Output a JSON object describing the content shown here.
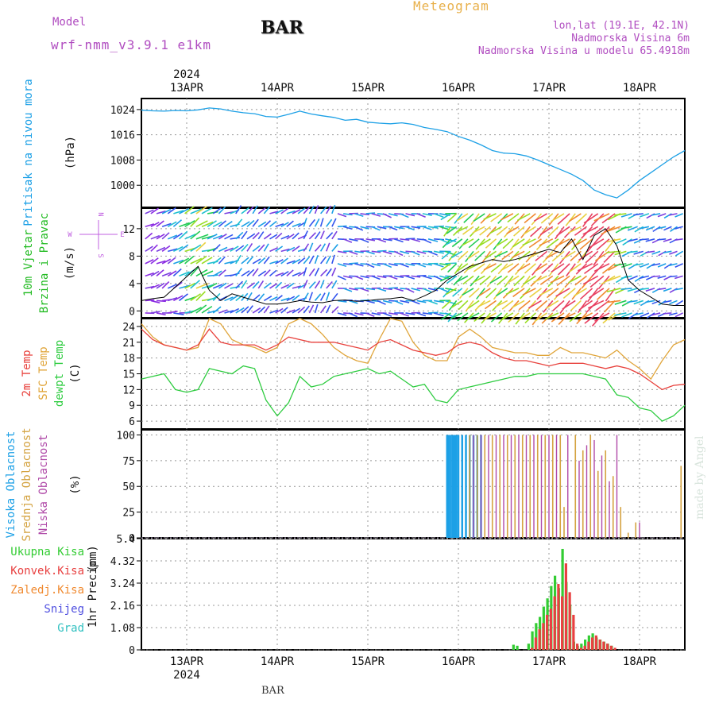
{
  "header": {
    "model_label": "Model",
    "model_name": "wrf-nmm_v3.9.1 e1km",
    "station": "BAR",
    "product": "Meteogram",
    "lonlat": "lon,lat (19.1E, 42.1N)",
    "elevation": "Nadmorska Visina 6m",
    "model_elevation": "Nadmorska Visina u modelu 65.4918m",
    "credit": "made by Angel",
    "footer_station": "BAR"
  },
  "time_axis": {
    "year": "2024",
    "day_labels": [
      "13APR",
      "14APR",
      "15APR",
      "16APR",
      "17APR",
      "18APR"
    ]
  },
  "colors": {
    "pressure": "#1ca0e6",
    "temp_2m": "#e8413c",
    "temp_sfc": "#e0a53a",
    "dewpoint": "#2ecc40",
    "cloud_high": "#1ca0e6",
    "cloud_mid": "#d4a341",
    "cloud_low": "#b04aa8",
    "precip_total": "#33cc33",
    "precip_conv": "#e84040",
    "precip_frozen": "#f08a30",
    "snow": "#5050e0",
    "hail": "#30c0c0",
    "wind_label": "#22bb22",
    "wind_sub_label": "#c060e0"
  },
  "chart_data": [
    {
      "type": "line",
      "panel": "pressure",
      "ylabel_parts": [
        "Pritisak na nivou mora",
        "(hPa)"
      ],
      "y_ticks": [
        "1024",
        "1016",
        "1008",
        "1000"
      ],
      "ylim": [
        993,
        1027.5
      ],
      "x_unit": "hours since 13APR 00",
      "xlim": [
        -12,
        132
      ],
      "series": [
        {
          "x": [
            -12,
            -9,
            -6,
            -3,
            0,
            3,
            6,
            9,
            12,
            15,
            18,
            21,
            24,
            27,
            30,
            33,
            36,
            39,
            42,
            45,
            48,
            51,
            54,
            57,
            60,
            63,
            66,
            69,
            72,
            75,
            78,
            81,
            84,
            87,
            90,
            93,
            96,
            99,
            102,
            105,
            108,
            111,
            114,
            117,
            120,
            123,
            126,
            129,
            132
          ],
          "values": [
            1023.8,
            1023.6,
            1023.5,
            1023.7,
            1023.6,
            1023.9,
            1024.5,
            1024.2,
            1023.5,
            1023.0,
            1022.7,
            1021.8,
            1021.6,
            1022.5,
            1023.5,
            1022.6,
            1022.0,
            1021.5,
            1020.6,
            1020.9,
            1020.0,
            1019.7,
            1019.5,
            1019.8,
            1019.3,
            1018.3,
            1017.7,
            1017.0,
            1015.5,
            1014.3,
            1012.8,
            1011.0,
            1010.2,
            1010.0,
            1009.3,
            1008.0,
            1006.5,
            1005.0,
            1003.5,
            1001.5,
            998.5,
            997.0,
            996.0,
            998.5,
            1001.5,
            1004.0,
            1006.5,
            1009.0,
            1011.0
          ]
        }
      ]
    },
    {
      "type": "scatter",
      "panel": "wind",
      "ylabel_parts": [
        "10m Vjetar",
        "Brzina i Pravac",
        "(m/s)"
      ],
      "compass": {
        "n": "N",
        "s": "S",
        "w": "W",
        "e": "E"
      },
      "y_ticks": [
        "12",
        "8",
        "4",
        "0"
      ],
      "ylim": [
        -1,
        15
      ],
      "xlim": [
        -12,
        132
      ],
      "speed": {
        "x": [
          -12,
          -9,
          -6,
          -3,
          0,
          3,
          6,
          9,
          12,
          15,
          18,
          21,
          24,
          27,
          30,
          33,
          36,
          39,
          42,
          45,
          48,
          51,
          54,
          57,
          60,
          63,
          66,
          69,
          72,
          75,
          78,
          81,
          84,
          87,
          90,
          93,
          96,
          99,
          102,
          105,
          108,
          111,
          114,
          117,
          120,
          123,
          126,
          129,
          132
        ],
        "values": [
          1.5,
          1.8,
          2.0,
          3.5,
          5.0,
          6.5,
          3.0,
          1.5,
          2.5,
          2.0,
          1.5,
          1.0,
          1.0,
          1.2,
          1.5,
          1.3,
          1.2,
          1.5,
          1.6,
          1.4,
          1.5,
          1.7,
          1.8,
          2.0,
          1.5,
          2.2,
          3.0,
          4.5,
          5.5,
          6.5,
          7.0,
          7.5,
          7.2,
          7.5,
          8.0,
          8.5,
          9.0,
          8.5,
          10.5,
          7.5,
          11.0,
          12.0,
          9.5,
          4.5,
          3.0,
          2.0,
          1.0,
          0.8,
          0.8
        ]
      }
    },
    {
      "type": "line",
      "panel": "temperature",
      "ylabel_parts": [
        "2m Temp",
        "SFC Temp",
        "dewpt Temp",
        "(C)"
      ],
      "y_ticks": [
        "24",
        "21",
        "18",
        "15",
        "12",
        "9",
        "6"
      ],
      "ylim": [
        4.5,
        25.5
      ],
      "xlim": [
        -12,
        132
      ],
      "series": [
        {
          "name": "2m Temp",
          "x": [
            -12,
            -9,
            -6,
            -3,
            0,
            3,
            6,
            9,
            12,
            15,
            18,
            21,
            24,
            27,
            30,
            33,
            36,
            39,
            42,
            45,
            48,
            51,
            54,
            57,
            60,
            63,
            66,
            69,
            72,
            75,
            78,
            81,
            84,
            87,
            90,
            93,
            96,
            99,
            102,
            105,
            108,
            111,
            114,
            117,
            120,
            123,
            126,
            129,
            132
          ],
          "values": [
            23.5,
            21.5,
            20.5,
            20.0,
            19.5,
            20.5,
            23.5,
            21.0,
            20.5,
            20.5,
            20.5,
            19.5,
            20.5,
            22.0,
            21.5,
            21.0,
            21.0,
            21.0,
            20.5,
            20.0,
            19.5,
            21.0,
            21.5,
            20.5,
            19.5,
            19.0,
            18.5,
            19.0,
            20.5,
            21.0,
            20.5,
            19.0,
            18.0,
            17.5,
            17.5,
            17.0,
            16.5,
            17.0,
            17.0,
            17.0,
            16.5,
            16.0,
            16.5,
            16.0,
            15.0,
            13.5,
            12.0,
            12.8,
            13.0
          ]
        },
        {
          "name": "SFC Temp",
          "x": [
            -12,
            -9,
            -6,
            -3,
            0,
            3,
            6,
            9,
            12,
            15,
            18,
            21,
            24,
            27,
            30,
            33,
            36,
            39,
            42,
            45,
            48,
            51,
            54,
            57,
            60,
            63,
            66,
            69,
            72,
            75,
            78,
            81,
            84,
            87,
            90,
            93,
            96,
            99,
            102,
            105,
            108,
            111,
            114,
            117,
            120,
            123,
            126,
            129,
            132
          ],
          "values": [
            24.5,
            22.0,
            20.5,
            20.0,
            19.5,
            20.0,
            25.5,
            24.5,
            21.5,
            20.5,
            20.0,
            19.0,
            20.0,
            24.5,
            25.5,
            24.5,
            22.5,
            20.0,
            18.5,
            17.5,
            17.0,
            21.5,
            25.5,
            25.0,
            21.0,
            18.5,
            17.5,
            17.5,
            22.0,
            23.5,
            22.0,
            20.0,
            19.5,
            19.0,
            19.0,
            18.5,
            18.5,
            20.0,
            19.0,
            19.0,
            18.5,
            18.0,
            19.5,
            17.5,
            16.0,
            14.0,
            17.5,
            20.5,
            21.5
          ]
        },
        {
          "name": "dewpt Temp",
          "x": [
            -12,
            -9,
            -6,
            -3,
            0,
            3,
            6,
            9,
            12,
            15,
            18,
            21,
            24,
            27,
            30,
            33,
            36,
            39,
            42,
            45,
            48,
            51,
            54,
            57,
            60,
            63,
            66,
            69,
            72,
            75,
            78,
            81,
            84,
            87,
            90,
            93,
            96,
            99,
            102,
            105,
            108,
            111,
            114,
            117,
            120,
            123,
            126,
            129,
            132
          ],
          "values": [
            14.0,
            14.5,
            15.0,
            12.0,
            11.5,
            12.0,
            16.0,
            15.5,
            15.0,
            16.5,
            16.0,
            10.0,
            7.0,
            9.5,
            14.5,
            12.5,
            13.0,
            14.5,
            15.0,
            15.5,
            16.0,
            15.0,
            15.5,
            14.0,
            12.5,
            13.0,
            10.0,
            9.5,
            12.0,
            12.5,
            13.0,
            13.5,
            14.0,
            14.5,
            14.5,
            15.0,
            15.0,
            15.0,
            15.0,
            15.0,
            14.5,
            14.0,
            11.0,
            10.5,
            8.5,
            8.0,
            6.0,
            7.0,
            9.0
          ]
        }
      ]
    },
    {
      "type": "bar",
      "panel": "clouds",
      "ylabel_parts": [
        "Visoka Oblacnost",
        "Srednja Oblacnost",
        "Niska Oblacnost",
        "(%)"
      ],
      "y_ticks": [
        "100",
        "75",
        "50",
        "25",
        "0"
      ],
      "ylim": [
        0,
        105
      ],
      "xlim": [
        -12,
        132
      ],
      "series": [
        {
          "name": "Visoka Oblacnost",
          "x": [
            69,
            69.5,
            70,
            70.5,
            71,
            71.5,
            72,
            73,
            74,
            75,
            76,
            77,
            78
          ],
          "values": [
            100,
            100,
            100,
            100,
            100,
            100,
            100,
            100,
            100,
            100,
            100,
            100,
            100
          ]
        },
        {
          "name": "Srednja Oblacnost",
          "x": [
            75,
            77,
            79,
            81,
            83,
            85,
            87,
            89,
            91,
            93,
            95,
            97,
            99,
            100,
            103,
            105,
            107,
            109,
            111,
            113,
            115,
            117,
            119,
            131
          ],
          "values": [
            100,
            100,
            100,
            100,
            100,
            100,
            100,
            100,
            100,
            100,
            100,
            100,
            100,
            30,
            100,
            85,
            100,
            65,
            85,
            60,
            30,
            5,
            15,
            70
          ]
        },
        {
          "name": "Niska Oblacnost",
          "x": [
            76,
            78,
            80,
            82,
            84,
            86,
            88,
            90,
            92,
            94,
            96,
            98,
            101,
            104,
            106,
            108,
            110,
            112,
            114,
            120
          ],
          "values": [
            100,
            100,
            100,
            100,
            100,
            100,
            100,
            100,
            100,
            100,
            100,
            100,
            100,
            75,
            90,
            95,
            80,
            55,
            100,
            15
          ]
        }
      ]
    },
    {
      "type": "bar",
      "panel": "precipitation",
      "ylabel_parts": [
        "1hr Precip",
        "(mm)"
      ],
      "legend": [
        "Ukupna Kisa",
        "Konvek.Kisa",
        "Zaledj.Kisa",
        "Snijeg",
        "Grad"
      ],
      "y_ticks": [
        "5.4",
        "4.32",
        "3.24",
        "2.16",
        "1.08",
        "0"
      ],
      "ylim": [
        0,
        5.4
      ],
      "xlim": [
        -12,
        132
      ],
      "series": [
        {
          "name": "Ukupna Kisa",
          "x": [
            87,
            88,
            91,
            92,
            93,
            94,
            95,
            96,
            97,
            98,
            99,
            100,
            101,
            102,
            103,
            104,
            105,
            106,
            107,
            108,
            109,
            110,
            111,
            112,
            113
          ],
          "values": [
            0.25,
            0.2,
            0.3,
            0.9,
            1.3,
            1.6,
            2.1,
            2.5,
            3.1,
            3.6,
            3.0,
            4.9,
            3.3,
            2.2,
            0.4,
            0.2,
            0.3,
            0.5,
            0.7,
            0.8,
            0.6,
            0.5,
            0.4,
            0.3,
            0.2
          ]
        },
        {
          "name": "Konvek.Kisa",
          "x": [
            91,
            92,
            93,
            94,
            95,
            96,
            97,
            98,
            99,
            100,
            101,
            102,
            103,
            104,
            105,
            106,
            107,
            108,
            109,
            110,
            111,
            112,
            113
          ],
          "values": [
            0.1,
            0.6,
            1.0,
            1.3,
            1.7,
            2.0,
            2.6,
            3.2,
            2.6,
            4.2,
            2.8,
            1.7,
            0.3,
            0.1,
            0.2,
            0.4,
            0.6,
            0.7,
            0.5,
            0.4,
            0.3,
            0.2,
            0.1
          ]
        }
      ]
    }
  ]
}
